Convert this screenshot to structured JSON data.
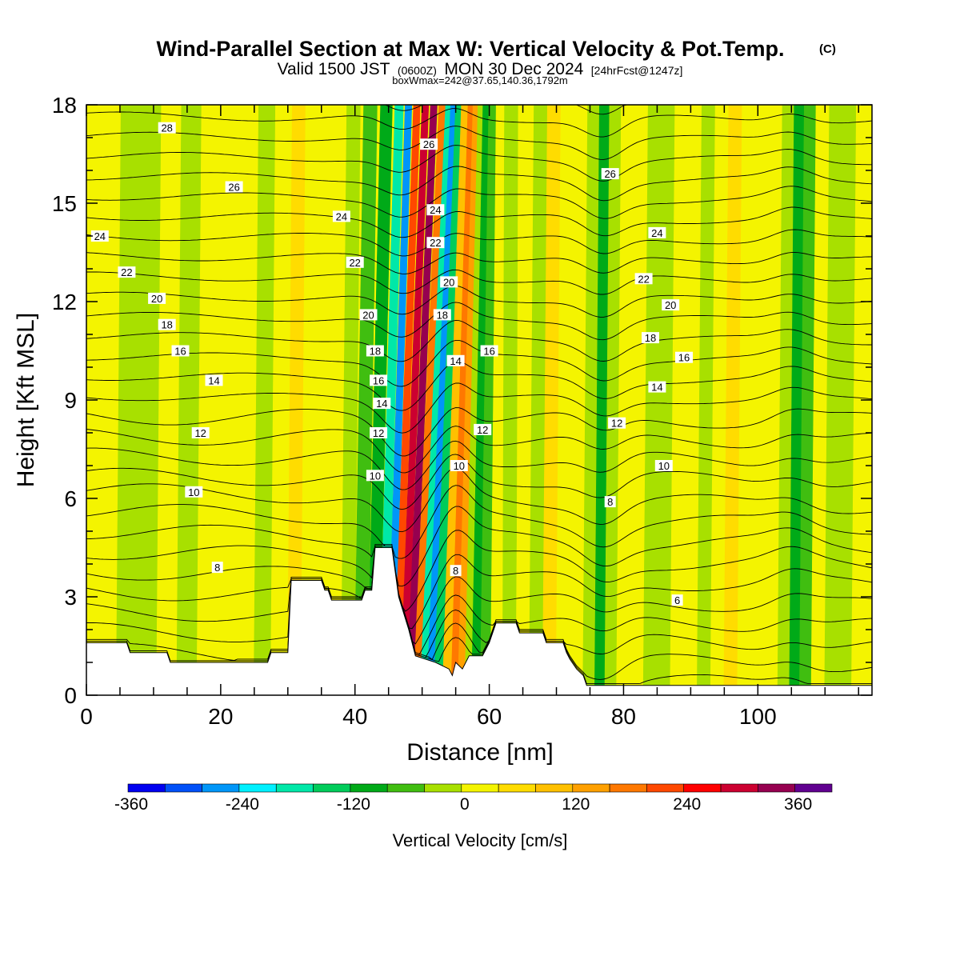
{
  "header": {
    "title": "Wind-Parallel Section at Max W: Vertical Velocity & Pot.Temp.",
    "copyright_mark": "(C)",
    "valid_prefix": "Valid 1500 JST",
    "valid_utc": "(0600Z)",
    "valid_date": "MON 30 Dec 2024",
    "forecast_tag": "[24hrFcst@1247z]",
    "box_info": "boxWmax=242@37.65,140.36,1792m"
  },
  "chart_data": {
    "type": "heatmap",
    "xlabel": "Distance [nm]",
    "ylabel": "Height [Kft MSL]",
    "xlim": [
      0,
      117
    ],
    "ylim": [
      0,
      18
    ],
    "x_ticks": [
      0,
      20,
      40,
      60,
      80,
      100
    ],
    "y_ticks": [
      0,
      3,
      6,
      9,
      12,
      15,
      18
    ],
    "colorbar": {
      "label": "Vertical Velocity [cm/s]",
      "tick_labels": [
        -360,
        -240,
        -120,
        0,
        120,
        240,
        360
      ],
      "bins": [
        {
          "from": -360,
          "to": -320,
          "color": "#0000f0"
        },
        {
          "from": -320,
          "to": -280,
          "color": "#0050f8"
        },
        {
          "from": -280,
          "to": -240,
          "color": "#0096f8"
        },
        {
          "from": -240,
          "to": -200,
          "color": "#00f0ff"
        },
        {
          "from": -200,
          "to": -160,
          "color": "#00e8a8"
        },
        {
          "from": -160,
          "to": -120,
          "color": "#00cc5a"
        },
        {
          "from": -120,
          "to": -80,
          "color": "#00aa18"
        },
        {
          "from": -80,
          "to": -40,
          "color": "#40be10"
        },
        {
          "from": -40,
          "to": 0,
          "color": "#a8e000"
        },
        {
          "from": 0,
          "to": 40,
          "color": "#f4f400"
        },
        {
          "from": 40,
          "to": 80,
          "color": "#ffdc00"
        },
        {
          "from": 80,
          "to": 120,
          "color": "#ffc000"
        },
        {
          "from": 120,
          "to": 160,
          "color": "#ffa000"
        },
        {
          "from": 160,
          "to": 200,
          "color": "#ff7800"
        },
        {
          "from": 200,
          "to": 240,
          "color": "#ff4800"
        },
        {
          "from": 240,
          "to": 280,
          "color": "#ff0000"
        },
        {
          "from": 280,
          "to": 320,
          "color": "#cc0030"
        },
        {
          "from": 320,
          "to": 360,
          "color": "#960050"
        },
        {
          "from": 360,
          "to": 400,
          "color": "#600090"
        }
      ]
    },
    "velocity_columns": [
      {
        "x": 0,
        "w": 0
      },
      {
        "x": 3,
        "w": 10
      },
      {
        "x": 6,
        "w": -20
      },
      {
        "x": 9,
        "w": -10
      },
      {
        "x": 12,
        "w": 20
      },
      {
        "x": 15,
        "w": -30
      },
      {
        "x": 18,
        "w": 20
      },
      {
        "x": 21,
        "w": 15
      },
      {
        "x": 24,
        "w": 10
      },
      {
        "x": 26,
        "w": -20
      },
      {
        "x": 29,
        "w": 10
      },
      {
        "x": 31,
        "w": 60
      },
      {
        "x": 33,
        "w": 25
      },
      {
        "x": 35,
        "w": 15
      },
      {
        "x": 37,
        "w": 10
      },
      {
        "x": 39,
        "w": -10
      },
      {
        "x": 41,
        "w": -60
      },
      {
        "x": 43,
        "w": -120
      },
      {
        "x": 44.5,
        "w": -200
      },
      {
        "x": 45.5,
        "w": -280
      },
      {
        "x": 46.5,
        "w": 220
      },
      {
        "x": 47.5,
        "w": 300
      },
      {
        "x": 48.5,
        "w": 330
      },
      {
        "x": 49.5,
        "w": 180
      },
      {
        "x": 50.5,
        "w": -200
      },
      {
        "x": 51.5,
        "w": -280
      },
      {
        "x": 52.5,
        "w": -150
      },
      {
        "x": 54,
        "w": 80
      },
      {
        "x": 55,
        "w": 180
      },
      {
        "x": 56,
        "w": 130
      },
      {
        "x": 57,
        "w": -40
      },
      {
        "x": 58,
        "w": -110
      },
      {
        "x": 59.5,
        "w": -60
      },
      {
        "x": 61,
        "w": 20
      },
      {
        "x": 63,
        "w": -15
      },
      {
        "x": 65,
        "w": 20
      },
      {
        "x": 67,
        "w": -15
      },
      {
        "x": 69,
        "w": 60
      },
      {
        "x": 71,
        "w": 20
      },
      {
        "x": 73,
        "w": 5
      },
      {
        "x": 75,
        "w": -30
      },
      {
        "x": 76.5,
        "w": -90
      },
      {
        "x": 78,
        "w": -40
      },
      {
        "x": 80,
        "w": 15
      },
      {
        "x": 82,
        "w": 30
      },
      {
        "x": 84,
        "w": -10
      },
      {
        "x": 86,
        "w": -30
      },
      {
        "x": 88,
        "w": 10
      },
      {
        "x": 90,
        "w": 30
      },
      {
        "x": 92,
        "w": -10
      },
      {
        "x": 94,
        "w": 10
      },
      {
        "x": 96,
        "w": 40
      },
      {
        "x": 98,
        "w": 20
      },
      {
        "x": 100,
        "w": 30
      },
      {
        "x": 102,
        "w": 30
      },
      {
        "x": 104,
        "w": -40
      },
      {
        "x": 105.5,
        "w": -110
      },
      {
        "x": 107,
        "w": -60
      },
      {
        "x": 109,
        "w": 20
      },
      {
        "x": 111,
        "w": -10
      },
      {
        "x": 113,
        "w": -35
      },
      {
        "x": 115,
        "w": 10
      },
      {
        "x": 117,
        "w": 0
      }
    ],
    "terrain": [
      [
        0,
        1.6
      ],
      [
        6,
        1.6
      ],
      [
        6.5,
        1.3
      ],
      [
        12,
        1.3
      ],
      [
        12.5,
        1.0
      ],
      [
        27,
        1.0
      ],
      [
        27.5,
        1.3
      ],
      [
        30,
        1.3
      ],
      [
        30.5,
        3.5
      ],
      [
        35,
        3.5
      ],
      [
        35.5,
        3.2
      ],
      [
        36,
        3.2
      ],
      [
        36.5,
        2.9
      ],
      [
        41,
        2.9
      ],
      [
        41.5,
        3.2
      ],
      [
        42.5,
        3.2
      ],
      [
        43,
        4.5
      ],
      [
        45.5,
        4.5
      ],
      [
        46.5,
        3.0
      ],
      [
        48,
        2.0
      ],
      [
        49,
        1.2
      ],
      [
        52,
        1.0
      ],
      [
        54,
        0.8
      ],
      [
        54.5,
        0.6
      ],
      [
        55,
        1.0
      ],
      [
        56,
        0.8
      ],
      [
        57,
        1.2
      ],
      [
        59,
        1.2
      ],
      [
        60,
        1.6
      ],
      [
        61,
        2.2
      ],
      [
        64,
        2.2
      ],
      [
        64.5,
        1.9
      ],
      [
        68,
        1.9
      ],
      [
        68.5,
        1.6
      ],
      [
        71,
        1.6
      ],
      [
        71.5,
        1.3
      ],
      [
        72,
        1.1
      ],
      [
        73,
        0.8
      ],
      [
        74,
        0.6
      ],
      [
        74.5,
        0.3
      ],
      [
        75,
        0.3
      ],
      [
        117,
        0.3
      ]
    ],
    "theta_contour_labels": [
      {
        "text": "28",
        "x": 12,
        "y": 17.3
      },
      {
        "text": "26",
        "x": 22,
        "y": 15.5
      },
      {
        "text": "26",
        "x": 51,
        "y": 16.8
      },
      {
        "text": "26",
        "x": 78,
        "y": 15.9
      },
      {
        "text": "24",
        "x": 2,
        "y": 14.0
      },
      {
        "text": "24",
        "x": 38,
        "y": 14.6
      },
      {
        "text": "24",
        "x": 52,
        "y": 14.8
      },
      {
        "text": "24",
        "x": 85,
        "y": 14.1
      },
      {
        "text": "22",
        "x": 6,
        "y": 12.9
      },
      {
        "text": "22",
        "x": 40,
        "y": 13.2
      },
      {
        "text": "22",
        "x": 52,
        "y": 13.8
      },
      {
        "text": "22",
        "x": 83,
        "y": 12.7
      },
      {
        "text": "20",
        "x": 10.5,
        "y": 12.1
      },
      {
        "text": "20",
        "x": 42,
        "y": 11.6
      },
      {
        "text": "20",
        "x": 54,
        "y": 12.6
      },
      {
        "text": "20",
        "x": 87,
        "y": 11.9
      },
      {
        "text": "18",
        "x": 12,
        "y": 11.3
      },
      {
        "text": "18",
        "x": 43,
        "y": 10.5
      },
      {
        "text": "18",
        "x": 53,
        "y": 11.6
      },
      {
        "text": "18",
        "x": 84,
        "y": 10.9
      },
      {
        "text": "16",
        "x": 14,
        "y": 10.5
      },
      {
        "text": "16",
        "x": 43.5,
        "y": 9.6
      },
      {
        "text": "16",
        "x": 60,
        "y": 10.5
      },
      {
        "text": "16",
        "x": 89,
        "y": 10.3
      },
      {
        "text": "14",
        "x": 19,
        "y": 9.6
      },
      {
        "text": "14",
        "x": 44,
        "y": 8.9
      },
      {
        "text": "14",
        "x": 55,
        "y": 10.2
      },
      {
        "text": "14",
        "x": 85,
        "y": 9.4
      },
      {
        "text": "12",
        "x": 17,
        "y": 8.0
      },
      {
        "text": "12",
        "x": 43.5,
        "y": 8.0
      },
      {
        "text": "12",
        "x": 59,
        "y": 8.1
      },
      {
        "text": "12",
        "x": 79,
        "y": 8.3
      },
      {
        "text": "10",
        "x": 16,
        "y": 6.2
      },
      {
        "text": "10",
        "x": 43,
        "y": 6.7
      },
      {
        "text": "10",
        "x": 55.5,
        "y": 7.0
      },
      {
        "text": "10",
        "x": 86,
        "y": 7.0
      },
      {
        "text": "8",
        "x": 19.5,
        "y": 3.9
      },
      {
        "text": "8",
        "x": 55,
        "y": 3.8
      },
      {
        "text": "8",
        "x": 78,
        "y": 5.9
      },
      {
        "text": "6",
        "x": 88,
        "y": 2.9
      }
    ]
  }
}
